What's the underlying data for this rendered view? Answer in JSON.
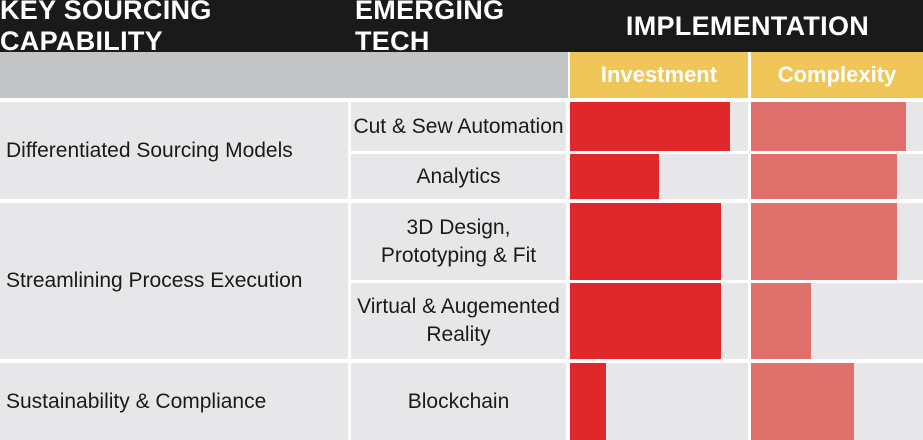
{
  "header": {
    "capability": "KEY SOURCING CAPABILITY",
    "tech": "EMERGING TECH",
    "implementation": "IMPLEMENTATION"
  },
  "subheader": {
    "investment": "Investment",
    "complexity": "Complexity"
  },
  "groups": [
    {
      "label": "Differentiated Sourcing Models"
    },
    {
      "label": "Streamlining Process Execution"
    },
    {
      "label": "Sustainability & Compliance"
    }
  ],
  "techs": [
    {
      "line1": "Cut & Sew Automation",
      "line2": ""
    },
    {
      "line1": "Analytics",
      "line2": ""
    },
    {
      "line1": "3D Design,",
      "line2": "Prototyping & Fit"
    },
    {
      "line1": "Virtual & Augemented",
      "line2": "Reality"
    },
    {
      "line1": "Blockchain",
      "line2": ""
    }
  ],
  "colors": {
    "header_bg": "#1a1a1a",
    "subheader_gold": "#f0c658",
    "investment_bar": "#e0282a",
    "complexity_bar": "#e0706b",
    "cell_bg": "#e7e7e9"
  },
  "chart_data": {
    "type": "bar",
    "orientation": "horizontal",
    "categories": [
      "Cut & Sew Automation",
      "Analytics",
      "3D Design, Prototyping & Fit",
      "Virtual & Augemented Reality",
      "Blockchain"
    ],
    "series": [
      {
        "name": "Investment",
        "values": [
          0.9,
          0.5,
          0.85,
          0.85,
          0.2
        ]
      },
      {
        "name": "Complexity",
        "values": [
          0.9,
          0.85,
          0.85,
          0.35,
          0.6
        ]
      }
    ],
    "xlim": [
      0,
      1
    ],
    "axes_shown": false
  }
}
